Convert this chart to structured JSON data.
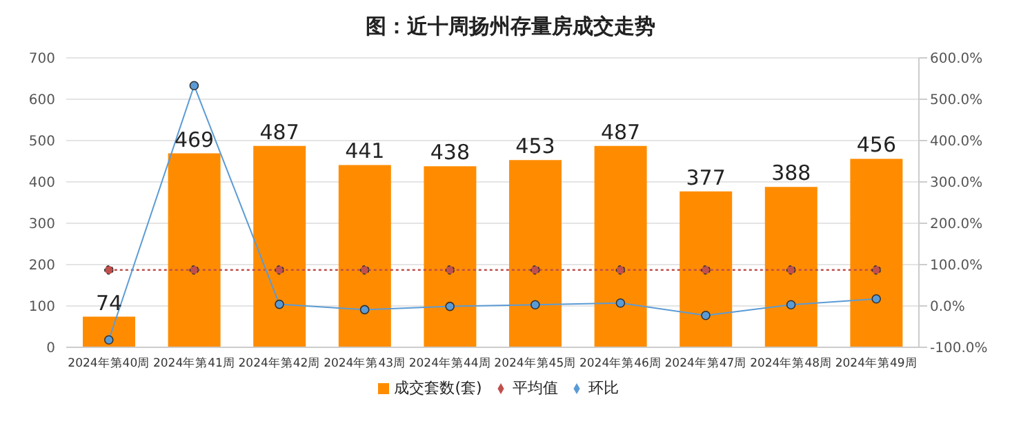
{
  "chart_data": {
    "type": "bar",
    "title": "图：近十周扬州存量房成交走势",
    "categories": [
      "2024年第40周",
      "2024年第41周",
      "2024年第42周",
      "2024年第43周",
      "2024年第44周",
      "2024年第45周",
      "2024年第46周",
      "2024年第47周",
      "2024年第48周",
      "2024年第49周"
    ],
    "series": [
      {
        "name": "成交套数(套)",
        "color": "#ff8c00",
        "data_labels": true,
        "values": [
          74,
          469,
          487,
          441,
          438,
          453,
          487,
          377,
          388,
          456
        ]
      },
      {
        "name": "平均值",
        "type": "line",
        "color": "#c0504d",
        "line_style": "dotted",
        "marker": "circle",
        "values": [
          187,
          187,
          187,
          187,
          187,
          187,
          187,
          187,
          187,
          187
        ]
      },
      {
        "name": "环比",
        "type": "line",
        "axis": "y2",
        "color": "#5b9bd5",
        "marker": "circle",
        "values": [
          -82,
          533,
          4,
          -9,
          -1,
          3,
          7,
          -23,
          3,
          17
        ]
      }
    ],
    "ylim": [
      0,
      700
    ],
    "yticks": [
      0,
      100,
      200,
      300,
      400,
      500,
      600,
      700
    ],
    "y2lim": [
      -100,
      600
    ],
    "y2ticks": [
      {
        "value": -100,
        "label": "-100.0%"
      },
      {
        "value": 0,
        "label": "0.0%"
      },
      {
        "value": 100,
        "label": "100.0%"
      },
      {
        "value": 200,
        "label": "200.0%"
      },
      {
        "value": 300,
        "label": "300.0%"
      },
      {
        "value": 400,
        "label": "400.0%"
      },
      {
        "value": 500,
        "label": "500.0%"
      },
      {
        "value": 600,
        "label": "600.0%"
      }
    ],
    "grid": "y",
    "legend": "bottom"
  }
}
